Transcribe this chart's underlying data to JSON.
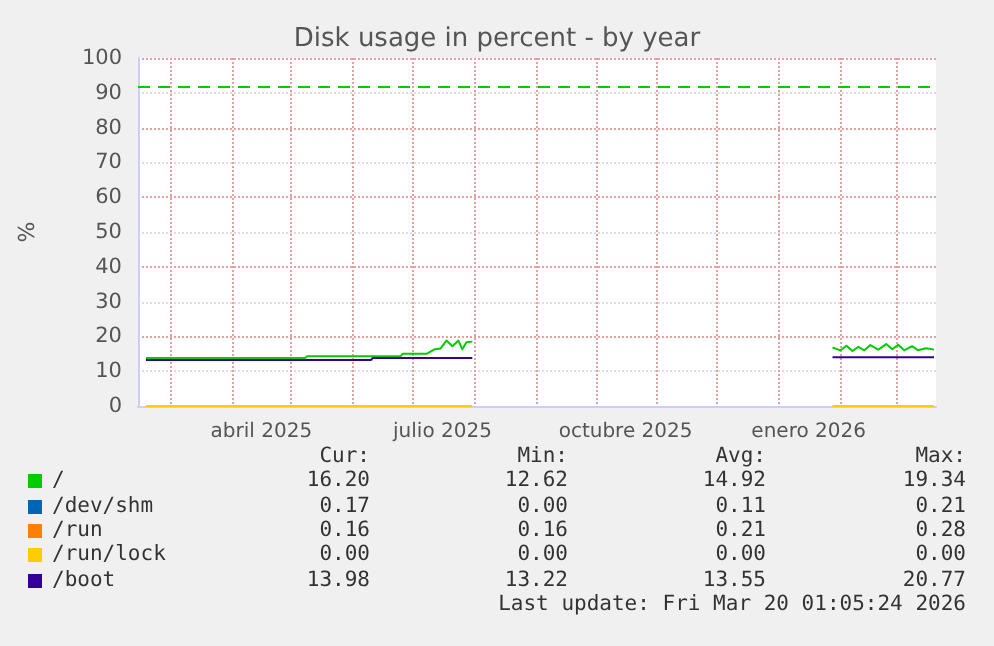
{
  "chart_data": {
    "type": "line",
    "title": "Disk usage in percent - by year",
    "ylabel": "%",
    "xlim": [
      "2025-02-13",
      "2026-03-21"
    ],
    "xticks": [
      {
        "value": "2025-03-01",
        "label": null
      },
      {
        "value": "2025-04-01",
        "label": null
      },
      {
        "value": "2025-04-16",
        "label": "abril 2025"
      },
      {
        "value": "2025-05-01",
        "label": null
      },
      {
        "value": "2025-06-01",
        "label": null
      },
      {
        "value": "2025-07-01",
        "label": null
      },
      {
        "value": "2025-07-16",
        "label": "julio 2025"
      },
      {
        "value": "2025-08-01",
        "label": null
      },
      {
        "value": "2025-09-01",
        "label": null
      },
      {
        "value": "2025-10-01",
        "label": null
      },
      {
        "value": "2025-10-16",
        "label": "octubre 2025"
      },
      {
        "value": "2025-11-01",
        "label": null
      },
      {
        "value": "2025-12-01",
        "label": null
      },
      {
        "value": "2026-01-01",
        "label": null
      },
      {
        "value": "2026-01-16",
        "label": "enero 2026"
      },
      {
        "value": "2026-02-01",
        "label": null
      },
      {
        "value": "2026-03-01",
        "label": null
      }
    ],
    "ylim": [
      0,
      100
    ],
    "yticks": [
      0,
      10,
      20,
      30,
      40,
      50,
      60,
      70,
      80,
      90,
      100
    ],
    "grid": true,
    "legend": "bottom",
    "marker": "none",
    "line_style": "solid",
    "series": [
      {
        "name": "/",
        "color": "#00cc00",
        "x": [
          "2025-02-17",
          "2025-05-08",
          "2025-05-09",
          "2025-06-25",
          "2025-06-26",
          "2025-07-08",
          "2025-07-12",
          "2025-07-15",
          "2025-07-18",
          "2025-07-21",
          "2025-07-24",
          "2025-07-26",
          "2025-07-28",
          "2025-07-31",
          "2025-08-01",
          "2026-01-28",
          "2026-02-01",
          "2026-02-04",
          "2026-02-07",
          "2026-02-10",
          "2026-02-13",
          "2026-02-16",
          "2026-02-20",
          "2026-02-24",
          "2026-02-27",
          "2026-03-02",
          "2026-03-05",
          "2026-03-09",
          "2026-03-12",
          "2026-03-16",
          "2026-03-20"
        ],
        "values": [
          13.8,
          13.8,
          14.3,
          14.3,
          15.0,
          15.0,
          16.3,
          16.5,
          18.8,
          17.2,
          18.8,
          16.3,
          18.3,
          18.5,
          null,
          16.8,
          16.0,
          17.3,
          15.8,
          17.0,
          16.0,
          17.5,
          16.2,
          17.8,
          16.3,
          17.6,
          16.0,
          17.2,
          16.0,
          16.6,
          16.2
        ]
      },
      {
        "name": "/dev/shm",
        "color": "#0066b3"
      },
      {
        "name": "/run",
        "color": "#ff8000"
      },
      {
        "name": "/run/lock",
        "color": "#ffcc00",
        "x": [
          "2025-02-17",
          "2025-07-31",
          "2025-08-01",
          "2026-01-28",
          "2026-03-20"
        ],
        "values": [
          0,
          0,
          null,
          0,
          0
        ]
      },
      {
        "name": "/boot",
        "color": "#330099",
        "x": [
          "2025-02-17",
          "2025-06-10",
          "2025-06-11",
          "2025-07-31",
          "2025-08-01",
          "2026-01-28",
          "2026-03-20"
        ],
        "values": [
          13.2,
          13.2,
          13.8,
          13.8,
          null,
          14.0,
          14.0
        ]
      }
    ],
    "ref_lines": [
      {
        "axis": "y",
        "value": 92,
        "color": "#00cc00",
        "line_style": "dashed"
      }
    ],
    "annotations": [
      "Cur:",
      "Min:",
      "Avg:",
      "Max:",
      "16.20",
      "12.62",
      "14.92",
      "19.34",
      "0.17",
      "0.00",
      "0.11",
      "0.21",
      "0.16",
      "0.16",
      "0.21",
      "0.28",
      "0.00",
      "0.00",
      "0.00",
      "0.00",
      "13.98",
      "13.22",
      "13.55",
      "20.77",
      "Last update: Fri Mar 20 01:05:24 2026"
    ]
  }
}
